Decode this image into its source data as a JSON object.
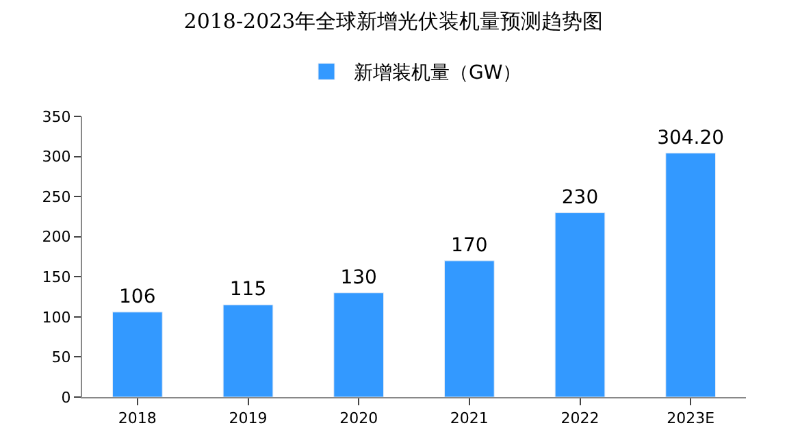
{
  "chart_data": {
    "type": "bar",
    "title": "2018-2023年全球新增光伏装机量预测趋势图",
    "categories": [
      "2018",
      "2019",
      "2020",
      "2021",
      "2022",
      "2023E"
    ],
    "series": [
      {
        "name": "新增装机量（GW）",
        "color": "#3399ff",
        "values": [
          106,
          115,
          130,
          170,
          230,
          304.2
        ],
        "value_labels": [
          "106",
          "115",
          "130",
          "170",
          "230",
          "304.20"
        ]
      }
    ],
    "ylim": [
      0,
      350
    ],
    "yticks": [
      0,
      50,
      100,
      150,
      200,
      250,
      300,
      350
    ],
    "legend": "top"
  }
}
